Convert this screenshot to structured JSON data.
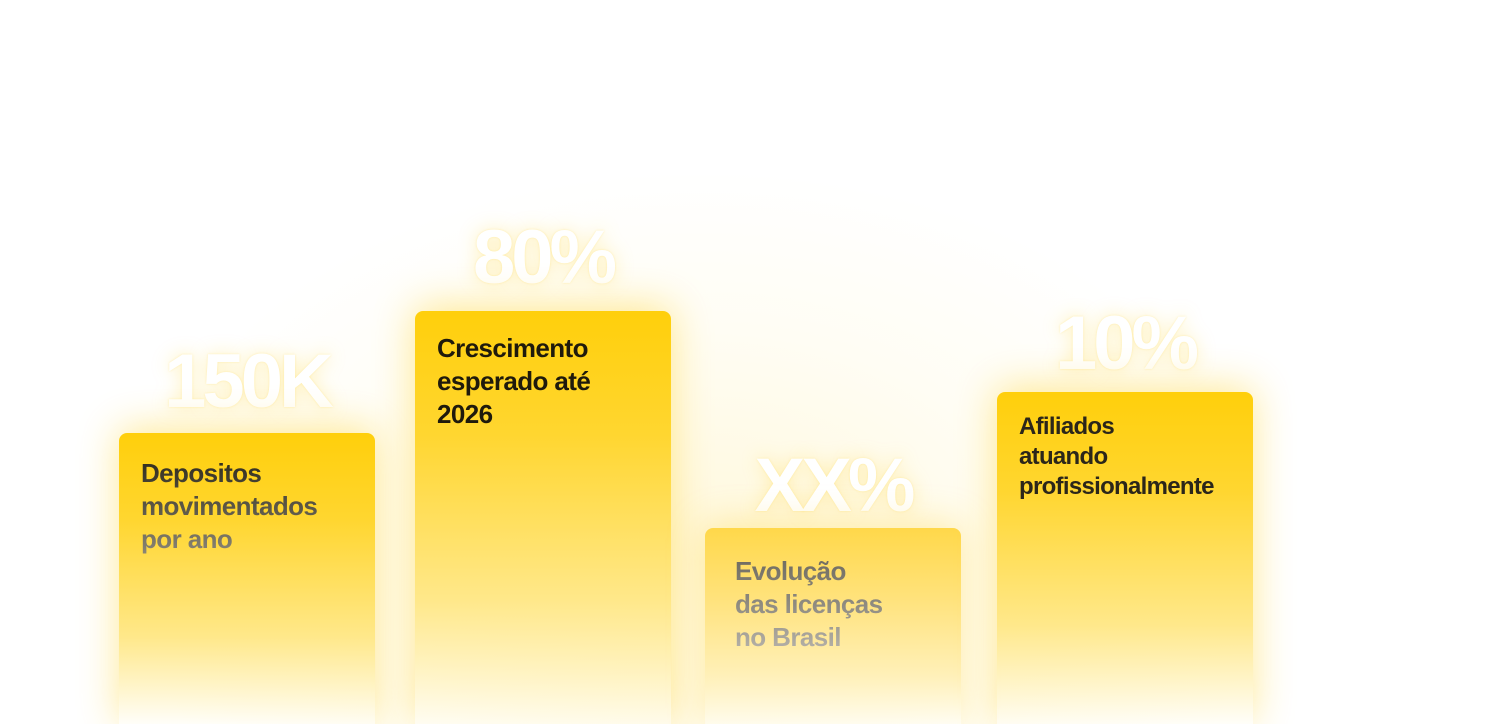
{
  "stats": [
    {
      "value": "150K",
      "label": "Depositos\nmovimentados\npor ano"
    },
    {
      "value": "80%",
      "label": "Crescimento\nesperado até\n2026"
    },
    {
      "value": "XX%",
      "label": "Evolução\ndas licenças\nno Brasil"
    },
    {
      "value": "10%",
      "label": "Afiliados\natuando\nprofissionalmente"
    }
  ],
  "colors": {
    "card_top": "#ffcf0b",
    "card_fade": "#ffe88a",
    "value_text": "#ffffff",
    "label_text": "#1f1a0c"
  }
}
